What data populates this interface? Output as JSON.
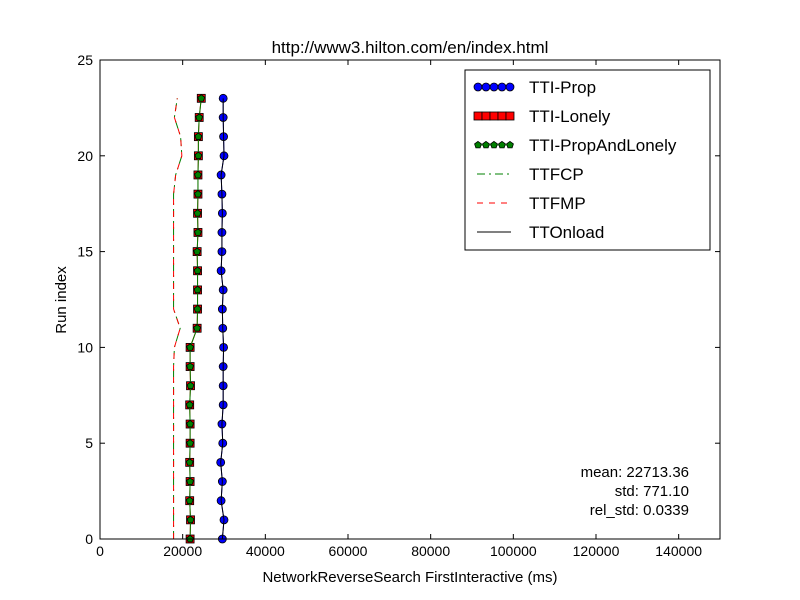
{
  "chart_data": {
    "type": "line",
    "title": "http://www3.hilton.com/en/index.html",
    "xlabel": "NetworkReverseSearch FirstInteractive (ms)",
    "ylabel": "Run index",
    "xlim": [
      0,
      150000
    ],
    "ylim": [
      0,
      25
    ],
    "xticks": [
      0,
      20000,
      40000,
      60000,
      80000,
      100000,
      120000,
      140000
    ],
    "yticks": [
      0,
      5,
      10,
      15,
      20,
      25
    ],
    "grid": false,
    "legend_position": "top-right",
    "y": [
      0,
      1,
      2,
      3,
      4,
      5,
      6,
      7,
      8,
      9,
      10,
      11,
      12,
      13,
      14,
      15,
      16,
      17,
      18,
      19,
      20,
      21,
      22,
      23
    ],
    "series": [
      {
        "name": "TTI-Prop",
        "style": "solid-circle",
        "color": "#0000ff",
        "x": [
          29600,
          30000,
          29300,
          29600,
          29200,
          29700,
          29500,
          29800,
          29800,
          29800,
          29900,
          29700,
          29600,
          29800,
          29300,
          29500,
          29500,
          29600,
          29500,
          29300,
          30000,
          29900,
          29800,
          29800
        ]
      },
      {
        "name": "TTI-Lonely",
        "style": "solid-square",
        "color": "#ff0000",
        "x": [
          21800,
          21900,
          21700,
          21800,
          21700,
          21800,
          21800,
          21700,
          21900,
          21800,
          21800,
          23500,
          23600,
          23600,
          23600,
          23500,
          23700,
          23600,
          23700,
          23700,
          23800,
          23800,
          24000,
          24500
        ]
      },
      {
        "name": "TTI-PropAndLonely",
        "style": "solid-pentagon",
        "color": "#008000",
        "x": [
          21800,
          21900,
          21700,
          21800,
          21700,
          21800,
          21800,
          21700,
          21900,
          21800,
          21800,
          23500,
          23600,
          23600,
          23600,
          23500,
          23700,
          23600,
          23700,
          23700,
          23800,
          23800,
          24000,
          24500
        ]
      },
      {
        "name": "TTFCP",
        "style": "dashdot",
        "color": "#008000",
        "x": [
          17800,
          17800,
          17800,
          17800,
          17800,
          17800,
          17800,
          17800,
          17800,
          17800,
          18000,
          19400,
          17800,
          17800,
          17800,
          17800,
          17800,
          17800,
          17800,
          18300,
          19800,
          19500,
          18000,
          18700
        ]
      },
      {
        "name": "TTFMP",
        "style": "dashed",
        "color": "#ff0000",
        "x": [
          17800,
          17800,
          17800,
          17800,
          17800,
          17800,
          17800,
          17800,
          17800,
          17800,
          18000,
          19400,
          17800,
          17800,
          17800,
          17800,
          17800,
          17800,
          17800,
          18300,
          19800,
          19500,
          18000,
          18700
        ]
      },
      {
        "name": "TTOnload",
        "style": "solid",
        "color": "#000000",
        "x": [
          29600,
          30000,
          29300,
          29600,
          29200,
          29700,
          29500,
          29800,
          29800,
          29800,
          29900,
          29700,
          29600,
          29800,
          29300,
          29500,
          29500,
          29600,
          29500,
          29300,
          30000,
          29900,
          29800,
          29800
        ]
      }
    ],
    "annotations": [
      "mean: 22713.36",
      "std: 771.10",
      "rel_std: 0.0339"
    ]
  }
}
